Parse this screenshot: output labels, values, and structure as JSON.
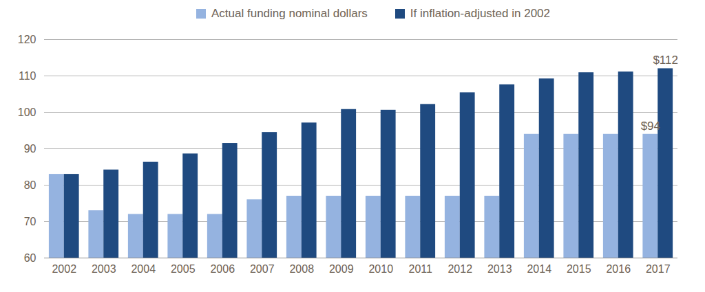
{
  "chart_data": {
    "type": "bar",
    "categories": [
      "2002",
      "2003",
      "2004",
      "2005",
      "2006",
      "2007",
      "2008",
      "2009",
      "2010",
      "2011",
      "2012",
      "2013",
      "2014",
      "2015",
      "2016",
      "2017"
    ],
    "series": [
      {
        "name": "Actual funding nominal dollars",
        "color": "#95b3e0",
        "values": [
          83,
          73,
          72,
          72,
          72,
          76,
          77,
          77,
          77,
          77,
          77,
          77,
          94,
          94,
          94,
          94
        ],
        "value_labels": [
          null,
          null,
          null,
          null,
          null,
          null,
          null,
          null,
          null,
          null,
          null,
          null,
          null,
          null,
          null,
          "$94"
        ]
      },
      {
        "name": "If inflation-adjusted in 2002",
        "color": "#1f4a80",
        "values": [
          83,
          84.2,
          86.3,
          88.6,
          91.5,
          94.5,
          97.1,
          100.8,
          100.6,
          102.2,
          105.4,
          107.6,
          109.2,
          110.9,
          111.1,
          112
        ],
        "value_labels": [
          null,
          null,
          null,
          null,
          null,
          null,
          null,
          null,
          null,
          null,
          null,
          null,
          null,
          null,
          null,
          "$112"
        ]
      }
    ],
    "ylim": [
      60,
      120
    ],
    "yticks": [
      60,
      70,
      80,
      90,
      100,
      110,
      120
    ],
    "grid": true,
    "legend": "top",
    "data_labels": true
  }
}
